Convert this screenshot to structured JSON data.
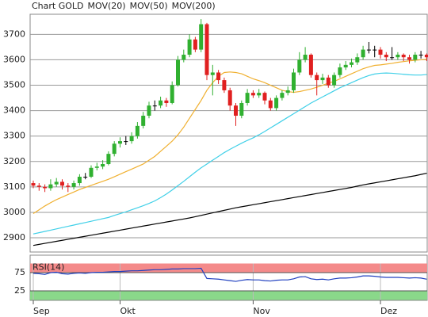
{
  "chart_data": [
    {
      "type": "candlestick",
      "title": "Chart GOLD",
      "categories": [
        "Sep",
        null,
        null,
        null,
        null,
        null,
        null,
        null,
        null,
        null,
        null,
        null,
        null,
        null,
        null,
        "Okt",
        null,
        null,
        null,
        null,
        null,
        null,
        null,
        null,
        null,
        null,
        null,
        null,
        null,
        null,
        null,
        null,
        null,
        null,
        null,
        null,
        null,
        null,
        "Nov",
        null,
        null,
        null,
        null,
        null,
        null,
        null,
        null,
        null,
        null,
        null,
        null,
        null,
        null,
        null,
        null,
        null,
        null,
        null,
        null,
        null,
        "Dez",
        null,
        null,
        null,
        null,
        null,
        null,
        null,
        null
      ],
      "open": [
        3115,
        3105,
        3100,
        3095,
        3110,
        3120,
        3105,
        3100,
        3115,
        3140,
        3140,
        3175,
        3180,
        3190,
        3230,
        3270,
        3280,
        3280,
        3300,
        3340,
        3380,
        3420,
        3420,
        3440,
        3430,
        3500,
        3600,
        3620,
        3680,
        3640,
        3740,
        3540,
        3550,
        3520,
        3480,
        3420,
        3380,
        3430,
        3470,
        3460,
        3470,
        3440,
        3410,
        3450,
        3470,
        3480,
        3550,
        3600,
        3620,
        3540,
        3520,
        3530,
        3500,
        3540,
        3570,
        3580,
        3590,
        3610,
        3640,
        3640,
        3640,
        3620,
        3610,
        3610,
        3620,
        3610,
        3600,
        3620,
        3620
      ],
      "close": [
        3105,
        3100,
        3095,
        3110,
        3120,
        3105,
        3100,
        3115,
        3140,
        3140,
        3175,
        3180,
        3190,
        3230,
        3270,
        3280,
        3280,
        3300,
        3340,
        3380,
        3420,
        3420,
        3440,
        3430,
        3500,
        3600,
        3620,
        3680,
        3640,
        3740,
        3540,
        3550,
        3520,
        3480,
        3420,
        3380,
        3430,
        3470,
        3460,
        3470,
        3440,
        3410,
        3450,
        3470,
        3480,
        3550,
        3600,
        3620,
        3540,
        3520,
        3530,
        3500,
        3540,
        3570,
        3580,
        3590,
        3610,
        3640,
        3640,
        3640,
        3620,
        3610,
        3610,
        3620,
        3610,
        3600,
        3620,
        3620,
        3610
      ],
      "high": [
        3125,
        3115,
        3110,
        3130,
        3135,
        3130,
        3115,
        3125,
        3150,
        3155,
        3185,
        3195,
        3205,
        3240,
        3280,
        3295,
        3300,
        3315,
        3355,
        3395,
        3435,
        3440,
        3455,
        3450,
        3515,
        3615,
        3640,
        3700,
        3690,
        3760,
        3745,
        3580,
        3560,
        3530,
        3490,
        3430,
        3440,
        3485,
        3480,
        3485,
        3475,
        3450,
        3460,
        3480,
        3495,
        3565,
        3630,
        3650,
        3625,
        3550,
        3545,
        3540,
        3550,
        3585,
        3595,
        3605,
        3625,
        3655,
        3670,
        3655,
        3650,
        3630,
        3650,
        3630,
        3625,
        3620,
        3630,
        3635,
        3625
      ],
      "low": [
        3095,
        3085,
        3080,
        3085,
        3100,
        3090,
        3080,
        3090,
        3105,
        3130,
        3135,
        3165,
        3170,
        3185,
        3220,
        3255,
        3265,
        3270,
        3290,
        3330,
        3370,
        3400,
        3410,
        3415,
        3425,
        3495,
        3590,
        3610,
        3630,
        3630,
        3520,
        3460,
        3505,
        3470,
        3400,
        3340,
        3370,
        3420,
        3450,
        3450,
        3425,
        3400,
        3400,
        3440,
        3460,
        3470,
        3540,
        3590,
        3530,
        3460,
        3505,
        3490,
        3490,
        3530,
        3560,
        3570,
        3580,
        3600,
        3625,
        3610,
        3605,
        3595,
        3600,
        3600,
        3595,
        3585,
        3590,
        3605,
        3595
      ],
      "series": [
        {
          "name": "MOV(20)",
          "color": "#f0b030",
          "values": [
            2995,
            3010,
            3025,
            3038,
            3050,
            3060,
            3070,
            3080,
            3090,
            3098,
            3106,
            3114,
            3122,
            3130,
            3140,
            3150,
            3160,
            3170,
            3180,
            3190,
            3205,
            3220,
            3240,
            3260,
            3280,
            3305,
            3335,
            3370,
            3405,
            3440,
            3480,
            3510,
            3535,
            3550,
            3552,
            3550,
            3545,
            3535,
            3525,
            3518,
            3510,
            3500,
            3490,
            3480,
            3475,
            3472,
            3475,
            3480,
            3485,
            3492,
            3500,
            3508,
            3515,
            3525,
            3535,
            3545,
            3555,
            3565,
            3572,
            3578,
            3580,
            3583,
            3586,
            3590,
            3593,
            3596,
            3598,
            3600,
            3602
          ]
        },
        {
          "name": "MOV(50)",
          "color": "#40d0e8",
          "values": [
            2915,
            2920,
            2925,
            2930,
            2935,
            2940,
            2945,
            2950,
            2955,
            2960,
            2965,
            2970,
            2975,
            2980,
            2988,
            2995,
            3002,
            3010,
            3018,
            3026,
            3035,
            3045,
            3058,
            3072,
            3088,
            3105,
            3122,
            3140,
            3158,
            3175,
            3190,
            3205,
            3220,
            3235,
            3248,
            3260,
            3272,
            3283,
            3293,
            3305,
            3318,
            3332,
            3346,
            3360,
            3374,
            3388,
            3402,
            3416,
            3430,
            3442,
            3454,
            3466,
            3478,
            3490,
            3500,
            3510,
            3520,
            3530,
            3538,
            3544,
            3547,
            3548,
            3547,
            3545,
            3543,
            3541,
            3540,
            3540,
            3542
          ]
        },
        {
          "name": "MOV(200)",
          "color": "#000000",
          "values": [
            2870,
            2874,
            2878,
            2882,
            2886,
            2890,
            2894,
            2898,
            2902,
            2906,
            2910,
            2914,
            2918,
            2922,
            2926,
            2930,
            2934,
            2938,
            2942,
            2946,
            2950,
            2954,
            2958,
            2962,
            2966,
            2970,
            2974,
            2978,
            2983,
            2988,
            2993,
            2998,
            3003,
            3008,
            3013,
            3018,
            3022,
            3026,
            3030,
            3034,
            3038,
            3042,
            3046,
            3050,
            3054,
            3058,
            3062,
            3066,
            3070,
            3074,
            3078,
            3082,
            3086,
            3090,
            3094,
            3098,
            3103,
            3108,
            3112,
            3116,
            3120,
            3124,
            3128,
            3132,
            3136,
            3140,
            3144,
            3149,
            3154
          ]
        }
      ],
      "up_color": "#30b030",
      "down_color": "#e02020",
      "ylim": [
        2844,
        3779
      ],
      "yticks": [
        2900,
        3000,
        3100,
        3200,
        3300,
        3400,
        3500,
        3600,
        3700
      ],
      "grid": true
    },
    {
      "type": "line",
      "title": "RSI(14)",
      "series": [
        {
          "name": "RSI(14)",
          "color": "#2040c0",
          "values": [
            73,
            72,
            70,
            75,
            76,
            72,
            71,
            73,
            74,
            73,
            75,
            76,
            76,
            77,
            78,
            78,
            79,
            80,
            80,
            81,
            82,
            83,
            83,
            84,
            85,
            85,
            86,
            86,
            86,
            87,
            59,
            58,
            57,
            55,
            53,
            51,
            54,
            56,
            55,
            55,
            53,
            52,
            54,
            55,
            55,
            58,
            63,
            64,
            58,
            56,
            57,
            55,
            58,
            60,
            60,
            61,
            63,
            66,
            66,
            65,
            63,
            62,
            62,
            62,
            61,
            60,
            61,
            60,
            57
          ]
        }
      ],
      "ylim": [
        0,
        100
      ],
      "yticks": [
        25,
        75
      ],
      "upper_color": "#f48a8a",
      "lower_color": "#8ad88a"
    }
  ]
}
